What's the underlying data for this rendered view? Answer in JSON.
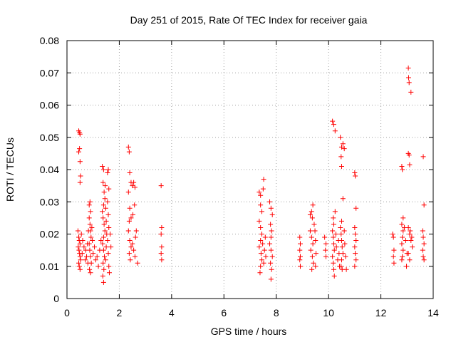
{
  "chart_data": {
    "type": "scatter",
    "title": "Day 251 of 2015, Rate Of TEC Index for receiver gaia",
    "xlabel": "GPS time / hours",
    "ylabel": "ROTI / TECUs",
    "xlim": [
      0,
      14
    ],
    "ylim": [
      0,
      0.08
    ],
    "xticks": [
      "0",
      "2",
      "4",
      "6",
      "8",
      "10",
      "12",
      "14"
    ],
    "yticks": [
      "0",
      "0.01",
      "0.02",
      "0.03",
      "0.04",
      "0.05",
      "0.06",
      "0.07",
      "0.08"
    ],
    "grid": true,
    "marker": "plus",
    "colors": {
      "points": "#ff0000",
      "grid": "#a0a0a0",
      "axes": "#000000"
    },
    "series": [
      {
        "points": [
          [
            0.45,
            0.052
          ],
          [
            0.48,
            0.0515
          ],
          [
            0.5,
            0.051
          ],
          [
            0.45,
            0.0455
          ],
          [
            0.48,
            0.0465
          ],
          [
            0.5,
            0.0425
          ],
          [
            0.52,
            0.038
          ],
          [
            0.5,
            0.036
          ],
          [
            0.42,
            0.021
          ],
          [
            0.45,
            0.019
          ],
          [
            0.47,
            0.018
          ],
          [
            0.5,
            0.017
          ],
          [
            0.43,
            0.016
          ],
          [
            0.46,
            0.015
          ],
          [
            0.48,
            0.014
          ],
          [
            0.5,
            0.013
          ],
          [
            0.52,
            0.012
          ],
          [
            0.45,
            0.011
          ],
          [
            0.47,
            0.01
          ],
          [
            0.5,
            0.009
          ],
          [
            0.55,
            0.02
          ],
          [
            0.58,
            0.014
          ],
          [
            0.6,
            0.018
          ],
          [
            0.65,
            0.016
          ],
          [
            0.7,
            0.012
          ],
          [
            0.72,
            0.015
          ],
          [
            0.75,
            0.013
          ],
          [
            0.78,
            0.017
          ],
          [
            0.8,
            0.011
          ],
          [
            0.82,
            0.021
          ],
          [
            0.85,
            0.029
          ],
          [
            0.88,
            0.03
          ],
          [
            0.9,
            0.027
          ],
          [
            0.85,
            0.025
          ],
          [
            0.88,
            0.023
          ],
          [
            0.9,
            0.021
          ],
          [
            0.92,
            0.019
          ],
          [
            0.85,
            0.017
          ],
          [
            0.87,
            0.015
          ],
          [
            0.9,
            0.013
          ],
          [
            0.93,
            0.011
          ],
          [
            0.86,
            0.009
          ],
          [
            0.9,
            0.008
          ],
          [
            0.95,
            0.022
          ],
          [
            0.97,
            0.018
          ],
          [
            1.0,
            0.014
          ],
          [
            1.05,
            0.016
          ],
          [
            1.1,
            0.012
          ],
          [
            1.15,
            0.013
          ],
          [
            1.2,
            0.01
          ],
          [
            1.25,
            0.015
          ],
          [
            1.3,
            0.018
          ],
          [
            1.35,
            0.041
          ],
          [
            1.4,
            0.04
          ],
          [
            1.38,
            0.036
          ],
          [
            1.42,
            0.033
          ],
          [
            1.45,
            0.031
          ],
          [
            1.4,
            0.029
          ],
          [
            1.35,
            0.027
          ],
          [
            1.38,
            0.025
          ],
          [
            1.42,
            0.023
          ],
          [
            1.45,
            0.021
          ],
          [
            1.4,
            0.019
          ],
          [
            1.36,
            0.017
          ],
          [
            1.4,
            0.015
          ],
          [
            1.43,
            0.013
          ],
          [
            1.38,
            0.011
          ],
          [
            1.41,
            0.009
          ],
          [
            1.37,
            0.007
          ],
          [
            1.4,
            0.005
          ],
          [
            1.46,
            0.035
          ],
          [
            1.48,
            0.028
          ],
          [
            1.5,
            0.024
          ],
          [
            1.52,
            0.02
          ],
          [
            1.5,
            0.016
          ],
          [
            1.48,
            0.012
          ],
          [
            1.55,
            0.039
          ],
          [
            1.58,
            0.04
          ],
          [
            1.6,
            0.034
          ],
          [
            1.55,
            0.03
          ],
          [
            1.58,
            0.026
          ],
          [
            1.6,
            0.022
          ],
          [
            1.55,
            0.018
          ],
          [
            1.58,
            0.014
          ],
          [
            1.6,
            0.01
          ],
          [
            1.62,
            0.008
          ],
          [
            1.65,
            0.02
          ],
          [
            1.68,
            0.016
          ],
          [
            2.35,
            0.047
          ],
          [
            2.38,
            0.0455
          ],
          [
            2.4,
            0.039
          ],
          [
            2.45,
            0.036
          ],
          [
            2.5,
            0.035
          ],
          [
            2.55,
            0.036
          ],
          [
            2.6,
            0.0345
          ],
          [
            2.35,
            0.033
          ],
          [
            2.4,
            0.028
          ],
          [
            2.45,
            0.025
          ],
          [
            2.38,
            0.024
          ],
          [
            2.35,
            0.021
          ],
          [
            2.4,
            0.018
          ],
          [
            2.45,
            0.016
          ],
          [
            2.38,
            0.014
          ],
          [
            2.42,
            0.012
          ],
          [
            2.5,
            0.017
          ],
          [
            2.55,
            0.015
          ],
          [
            2.6,
            0.013
          ],
          [
            2.65,
            0.021
          ],
          [
            2.7,
            0.011
          ],
          [
            2.62,
            0.019
          ],
          [
            2.58,
            0.029
          ],
          [
            2.52,
            0.026
          ],
          [
            3.6,
            0.035
          ],
          [
            3.62,
            0.022
          ],
          [
            3.6,
            0.02
          ],
          [
            3.62,
            0.016
          ],
          [
            3.6,
            0.014
          ],
          [
            3.62,
            0.012
          ],
          [
            7.35,
            0.033
          ],
          [
            7.4,
            0.032
          ],
          [
            7.5,
            0.034
          ],
          [
            7.52,
            0.037
          ],
          [
            7.4,
            0.029
          ],
          [
            7.45,
            0.027
          ],
          [
            7.35,
            0.024
          ],
          [
            7.4,
            0.022
          ],
          [
            7.45,
            0.02
          ],
          [
            7.4,
            0.018
          ],
          [
            7.35,
            0.016
          ],
          [
            7.42,
            0.014
          ],
          [
            7.45,
            0.012
          ],
          [
            7.4,
            0.01
          ],
          [
            7.38,
            0.008
          ],
          [
            7.48,
            0.017
          ],
          [
            7.55,
            0.015
          ],
          [
            7.6,
            0.013
          ],
          [
            7.52,
            0.011
          ],
          [
            7.58,
            0.019
          ],
          [
            7.75,
            0.03
          ],
          [
            7.8,
            0.028
          ],
          [
            7.85,
            0.026
          ],
          [
            7.78,
            0.023
          ],
          [
            7.82,
            0.021
          ],
          [
            7.8,
            0.019
          ],
          [
            7.75,
            0.017
          ],
          [
            7.8,
            0.015
          ],
          [
            7.85,
            0.013
          ],
          [
            7.78,
            0.011
          ],
          [
            7.82,
            0.009
          ],
          [
            7.8,
            0.006
          ],
          [
            8.9,
            0.019
          ],
          [
            8.92,
            0.017
          ],
          [
            8.9,
            0.015
          ],
          [
            8.92,
            0.013
          ],
          [
            8.9,
            0.012
          ],
          [
            8.92,
            0.01
          ],
          [
            9.3,
            0.026
          ],
          [
            9.35,
            0.027
          ],
          [
            9.4,
            0.029
          ],
          [
            9.38,
            0.025
          ],
          [
            9.3,
            0.021
          ],
          [
            9.35,
            0.019
          ],
          [
            9.4,
            0.017
          ],
          [
            9.32,
            0.015
          ],
          [
            9.38,
            0.013
          ],
          [
            9.42,
            0.011
          ],
          [
            9.36,
            0.009
          ],
          [
            9.45,
            0.023
          ],
          [
            9.48,
            0.021
          ],
          [
            9.5,
            0.018
          ],
          [
            9.52,
            0.014
          ],
          [
            9.5,
            0.01
          ],
          [
            9.85,
            0.019
          ],
          [
            9.9,
            0.017
          ],
          [
            9.88,
            0.015
          ],
          [
            9.9,
            0.013
          ],
          [
            10.15,
            0.055
          ],
          [
            10.2,
            0.054
          ],
          [
            10.25,
            0.052
          ],
          [
            10.18,
            0.025
          ],
          [
            10.2,
            0.023
          ],
          [
            10.15,
            0.021
          ],
          [
            10.18,
            0.019
          ],
          [
            10.2,
            0.017
          ],
          [
            10.22,
            0.015
          ],
          [
            10.15,
            0.013
          ],
          [
            10.18,
            0.011
          ],
          [
            10.2,
            0.009
          ],
          [
            10.22,
            0.007
          ],
          [
            10.25,
            0.027
          ],
          [
            10.28,
            0.02
          ],
          [
            10.3,
            0.016
          ],
          [
            10.35,
            0.012
          ],
          [
            10.38,
            0.018
          ],
          [
            10.4,
            0.014
          ],
          [
            10.42,
            0.01
          ],
          [
            10.45,
            0.05
          ],
          [
            10.5,
            0.047
          ],
          [
            10.55,
            0.048
          ],
          [
            10.6,
            0.0465
          ],
          [
            10.48,
            0.044
          ],
          [
            10.5,
            0.041
          ],
          [
            10.55,
            0.031
          ],
          [
            10.5,
            0.024
          ],
          [
            10.45,
            0.022
          ],
          [
            10.48,
            0.02
          ],
          [
            10.5,
            0.018
          ],
          [
            10.52,
            0.016
          ],
          [
            10.55,
            0.014
          ],
          [
            10.5,
            0.012
          ],
          [
            10.48,
            0.01
          ],
          [
            10.52,
            0.009
          ],
          [
            10.6,
            0.021
          ],
          [
            10.62,
            0.017
          ],
          [
            10.65,
            0.013
          ],
          [
            10.68,
            0.009
          ],
          [
            11.0,
            0.039
          ],
          [
            11.02,
            0.038
          ],
          [
            11.05,
            0.028
          ],
          [
            11.0,
            0.022
          ],
          [
            11.02,
            0.02
          ],
          [
            11.05,
            0.018
          ],
          [
            11.0,
            0.016
          ],
          [
            11.02,
            0.014
          ],
          [
            11.05,
            0.012
          ],
          [
            11.0,
            0.01
          ],
          [
            12.45,
            0.02
          ],
          [
            12.48,
            0.019
          ],
          [
            12.5,
            0.015
          ],
          [
            12.48,
            0.013
          ],
          [
            12.5,
            0.011
          ],
          [
            12.8,
            0.041
          ],
          [
            12.82,
            0.04
          ],
          [
            12.85,
            0.025
          ],
          [
            12.8,
            0.023
          ],
          [
            12.85,
            0.021
          ],
          [
            12.82,
            0.019
          ],
          [
            12.8,
            0.017
          ],
          [
            12.85,
            0.015
          ],
          [
            12.82,
            0.013
          ],
          [
            12.8,
            0.012
          ],
          [
            12.9,
            0.022
          ],
          [
            12.95,
            0.018
          ],
          [
            13.0,
            0.014
          ],
          [
            12.98,
            0.01
          ],
          [
            13.05,
            0.0715
          ],
          [
            13.06,
            0.0685
          ],
          [
            13.08,
            0.067
          ],
          [
            13.15,
            0.064
          ],
          [
            13.05,
            0.045
          ],
          [
            13.08,
            0.0445
          ],
          [
            13.1,
            0.0415
          ],
          [
            13.05,
            0.022
          ],
          [
            13.1,
            0.02
          ],
          [
            13.15,
            0.018
          ],
          [
            13.2,
            0.016
          ],
          [
            13.05,
            0.014
          ],
          [
            13.1,
            0.012
          ],
          [
            13.12,
            0.021
          ],
          [
            13.18,
            0.019
          ],
          [
            13.62,
            0.044
          ],
          [
            13.65,
            0.029
          ],
          [
            13.6,
            0.021
          ],
          [
            13.62,
            0.019
          ],
          [
            13.65,
            0.017
          ],
          [
            13.6,
            0.015
          ],
          [
            13.62,
            0.013
          ],
          [
            13.65,
            0.012
          ]
        ]
      }
    ]
  }
}
